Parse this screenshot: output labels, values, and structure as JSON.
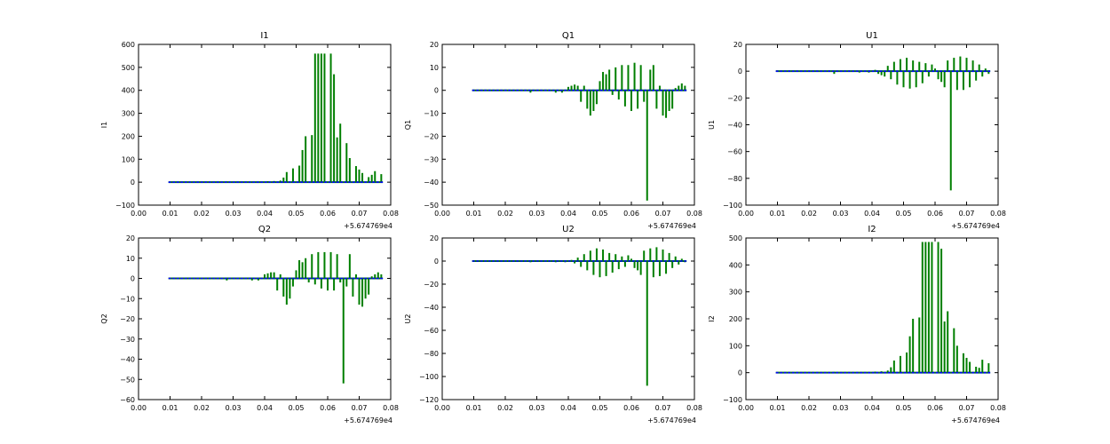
{
  "figure": {
    "background": "#ffffff",
    "colors": {
      "spike": "#007f00",
      "baseline": "#0000ff",
      "axis": "#000000"
    }
  },
  "chart_data": [
    {
      "type": "bar",
      "title": "I1",
      "ylabel": "I1",
      "xlim": [
        0.0,
        0.08
      ],
      "ylim": [
        -100,
        600
      ],
      "xticks": [
        "0.00",
        "0.01",
        "0.02",
        "0.03",
        "0.04",
        "0.05",
        "0.06",
        "0.07",
        "0.08"
      ],
      "yticks": [
        "−100",
        "0",
        "100",
        "200",
        "300",
        "400",
        "500",
        "600"
      ],
      "x_offset_label": "+5.674769e4",
      "x": [
        0.028,
        0.036,
        0.039,
        0.041,
        0.043,
        0.045,
        0.046,
        0.047,
        0.049,
        0.051,
        0.052,
        0.053,
        0.055,
        0.056,
        0.057,
        0.058,
        0.059,
        0.061,
        0.062,
        0.063,
        0.064,
        0.066,
        0.067,
        0.069,
        0.07,
        0.071,
        0.073,
        0.074,
        0.075,
        0.077
      ],
      "values": [
        3,
        2,
        2,
        4,
        5,
        7,
        20,
        44,
        60,
        72,
        140,
        200,
        205,
        560,
        560,
        560,
        560,
        560,
        470,
        195,
        255,
        170,
        105,
        70,
        55,
        40,
        22,
        32,
        48,
        35
      ]
    },
    {
      "type": "bar",
      "title": "Q1",
      "ylabel": "Q1",
      "xlim": [
        0.0,
        0.08
      ],
      "ylim": [
        -50,
        20
      ],
      "xticks": [
        "0.00",
        "0.01",
        "0.02",
        "0.03",
        "0.04",
        "0.05",
        "0.06",
        "0.07",
        "0.08"
      ],
      "yticks": [
        "−50",
        "−40",
        "−30",
        "−20",
        "−10",
        "0",
        "10",
        "20"
      ],
      "x_offset_label": "+5.674769e4",
      "x": [
        0.028,
        0.036,
        0.038,
        0.04,
        0.041,
        0.042,
        0.043,
        0.044,
        0.045,
        0.046,
        0.047,
        0.048,
        0.049,
        0.05,
        0.051,
        0.052,
        0.053,
        0.054,
        0.055,
        0.056,
        0.057,
        0.058,
        0.059,
        0.06,
        0.061,
        0.062,
        0.063,
        0.064,
        0.065,
        0.066,
        0.067,
        0.068,
        0.069,
        0.07,
        0.071,
        0.072,
        0.073,
        0.074,
        0.075,
        0.076,
        0.077
      ],
      "values": [
        -1,
        -1,
        -1,
        1.5,
        2,
        2.5,
        2,
        -5,
        2,
        -8,
        -11,
        -9,
        -6,
        4,
        8,
        7,
        9,
        -2,
        10,
        -4,
        11,
        -7,
        11,
        -9,
        12,
        -8,
        11,
        -5,
        -48,
        9,
        11,
        -8,
        2,
        -11,
        -12,
        -9,
        -8,
        1,
        2,
        3,
        2
      ]
    },
    {
      "type": "bar",
      "title": "U1",
      "ylabel": "U1",
      "xlim": [
        0.0,
        0.08
      ],
      "ylim": [
        -100,
        20
      ],
      "xticks": [
        "0.00",
        "0.01",
        "0.02",
        "0.03",
        "0.04",
        "0.05",
        "0.06",
        "0.07",
        "0.08"
      ],
      "yticks": [
        "−100",
        "−80",
        "−60",
        "−40",
        "−20",
        "0",
        "20"
      ],
      "x_offset_label": "+5.674769e4",
      "x": [
        0.028,
        0.036,
        0.039,
        0.041,
        0.042,
        0.043,
        0.044,
        0.045,
        0.046,
        0.047,
        0.048,
        0.049,
        0.05,
        0.051,
        0.052,
        0.053,
        0.054,
        0.055,
        0.056,
        0.057,
        0.058,
        0.059,
        0.06,
        0.061,
        0.062,
        0.063,
        0.064,
        0.065,
        0.066,
        0.067,
        0.068,
        0.069,
        0.07,
        0.071,
        0.072,
        0.073,
        0.074,
        0.075,
        0.076,
        0.077
      ],
      "values": [
        -2,
        -1,
        -1,
        1,
        -2,
        -3,
        -4,
        4,
        -6,
        7,
        -10,
        9,
        -12,
        10,
        -13,
        8,
        -12,
        7,
        -9,
        6,
        -4,
        5,
        2,
        -6,
        -8,
        -12,
        8,
        -89,
        10,
        -14,
        11,
        -14,
        10,
        -12,
        8,
        -7,
        5,
        -4,
        2,
        -2
      ]
    },
    {
      "type": "bar",
      "title": "Q2",
      "ylabel": "Q2",
      "xlim": [
        0.0,
        0.08
      ],
      "ylim": [
        -60,
        20
      ],
      "xticks": [
        "0.00",
        "0.01",
        "0.02",
        "0.03",
        "0.04",
        "0.05",
        "0.06",
        "0.07",
        "0.08"
      ],
      "yticks": [
        "−60",
        "−50",
        "−40",
        "−30",
        "−20",
        "−10",
        "0",
        "10",
        "20"
      ],
      "x_offset_label": "+5.674769e4",
      "x": [
        0.028,
        0.036,
        0.038,
        0.04,
        0.041,
        0.042,
        0.043,
        0.044,
        0.045,
        0.046,
        0.047,
        0.048,
        0.049,
        0.05,
        0.051,
        0.052,
        0.053,
        0.054,
        0.055,
        0.056,
        0.057,
        0.058,
        0.059,
        0.06,
        0.061,
        0.062,
        0.063,
        0.064,
        0.065,
        0.066,
        0.067,
        0.068,
        0.069,
        0.07,
        0.071,
        0.072,
        0.073,
        0.074,
        0.075,
        0.076,
        0.077
      ],
      "values": [
        -1,
        -1,
        -1,
        2,
        2.5,
        3,
        3,
        -6,
        2,
        -9,
        -13,
        -10,
        -4,
        4,
        9,
        8,
        10,
        -2,
        12,
        -3,
        13,
        -5,
        13,
        -6,
        13,
        -6,
        12,
        -2,
        -52,
        -4,
        12,
        -9,
        2,
        -13,
        -14,
        -10,
        -8,
        1,
        2,
        3,
        2
      ]
    },
    {
      "type": "bar",
      "title": "U2",
      "ylabel": "U2",
      "xlim": [
        0.0,
        0.08
      ],
      "ylim": [
        -120,
        20
      ],
      "xticks": [
        "0.00",
        "0.01",
        "0.02",
        "0.03",
        "0.04",
        "0.05",
        "0.06",
        "0.07",
        "0.08"
      ],
      "yticks": [
        "−120",
        "−100",
        "−80",
        "−60",
        "−40",
        "−20",
        "0",
        "20"
      ],
      "x_offset_label": "+5.674769e4",
      "x": [
        0.028,
        0.036,
        0.039,
        0.041,
        0.042,
        0.043,
        0.044,
        0.045,
        0.046,
        0.047,
        0.048,
        0.049,
        0.05,
        0.051,
        0.052,
        0.053,
        0.054,
        0.055,
        0.056,
        0.057,
        0.058,
        0.059,
        0.06,
        0.061,
        0.062,
        0.063,
        0.064,
        0.065,
        0.066,
        0.067,
        0.068,
        0.069,
        0.07,
        0.071,
        0.072,
        0.073,
        0.074,
        0.075,
        0.076,
        0.077
      ],
      "values": [
        -1,
        -1,
        -1,
        1,
        -2,
        3,
        -5,
        6,
        -8,
        9,
        -12,
        11,
        -14,
        10,
        -13,
        7,
        -10,
        6,
        -7,
        4,
        -5,
        5,
        2,
        -6,
        -8,
        -12,
        9,
        -108,
        11,
        -14,
        12,
        -13,
        10,
        -11,
        7,
        -6,
        4,
        -3,
        2,
        -1
      ]
    },
    {
      "type": "bar",
      "title": "I2",
      "ylabel": "I2",
      "xlim": [
        0.0,
        0.08
      ],
      "ylim": [
        -100,
        500
      ],
      "xticks": [
        "0.00",
        "0.01",
        "0.02",
        "0.03",
        "0.04",
        "0.05",
        "0.06",
        "0.07",
        "0.08"
      ],
      "yticks": [
        "−100",
        "0",
        "100",
        "200",
        "300",
        "400",
        "500"
      ],
      "x_offset_label": "+5.674769e4",
      "x": [
        0.028,
        0.036,
        0.039,
        0.041,
        0.043,
        0.045,
        0.046,
        0.047,
        0.049,
        0.051,
        0.052,
        0.053,
        0.055,
        0.056,
        0.057,
        0.058,
        0.059,
        0.061,
        0.062,
        0.063,
        0.064,
        0.066,
        0.067,
        0.069,
        0.07,
        0.071,
        0.073,
        0.074,
        0.075,
        0.077
      ],
      "values": [
        3,
        2,
        2,
        4,
        5,
        8,
        20,
        45,
        62,
        75,
        135,
        200,
        205,
        485,
        485,
        485,
        485,
        485,
        460,
        190,
        228,
        165,
        100,
        72,
        55,
        40,
        22,
        18,
        48,
        35
      ]
    }
  ]
}
